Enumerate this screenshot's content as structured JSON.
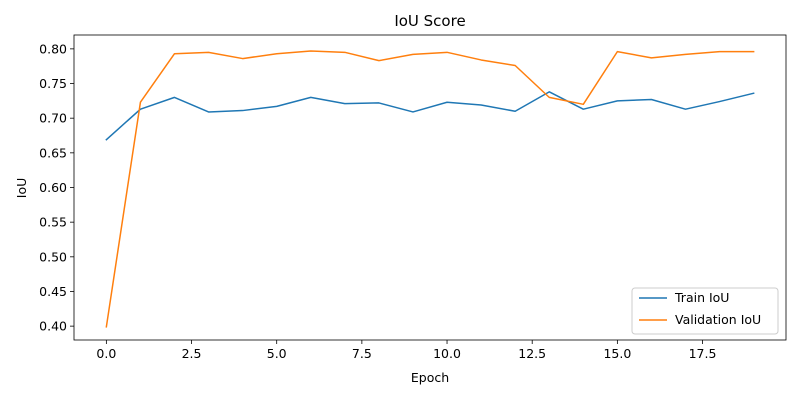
{
  "chart_data": {
    "type": "line",
    "title": "IoU Score",
    "xlabel": "Epoch",
    "ylabel": "IoU",
    "xlim": [
      -0.95,
      19.95
    ],
    "ylim": [
      0.38,
      0.82
    ],
    "x_ticks": [
      0.0,
      2.5,
      5.0,
      7.5,
      10.0,
      12.5,
      15.0,
      17.5
    ],
    "x_tick_labels": [
      "0.0",
      "2.5",
      "5.0",
      "7.5",
      "10.0",
      "12.5",
      "15.0",
      "17.5"
    ],
    "y_ticks": [
      0.4,
      0.45,
      0.5,
      0.55,
      0.6,
      0.65,
      0.7,
      0.75,
      0.8
    ],
    "y_tick_labels": [
      "0.40",
      "0.45",
      "0.50",
      "0.55",
      "0.60",
      "0.65",
      "0.70",
      "0.75",
      "0.80"
    ],
    "grid": false,
    "legend_position": "lower-right",
    "x": [
      0,
      1,
      2,
      3,
      4,
      5,
      6,
      7,
      8,
      9,
      10,
      11,
      12,
      13,
      14,
      15,
      16,
      17,
      18,
      19
    ],
    "series": [
      {
        "name": "Train IoU",
        "color": "#1f77b4",
        "values": [
          0.669,
          0.713,
          0.73,
          0.709,
          0.711,
          0.717,
          0.73,
          0.721,
          0.722,
          0.709,
          0.723,
          0.719,
          0.71,
          0.738,
          0.713,
          0.725,
          0.727,
          0.713,
          0.724,
          0.736
        ]
      },
      {
        "name": "Validation IoU",
        "color": "#ff7f0e",
        "values": [
          0.399,
          0.723,
          0.793,
          0.795,
          0.786,
          0.793,
          0.797,
          0.795,
          0.783,
          0.792,
          0.795,
          0.784,
          0.776,
          0.73,
          0.72,
          0.796,
          0.787,
          0.792,
          0.796,
          0.796
        ]
      }
    ]
  }
}
